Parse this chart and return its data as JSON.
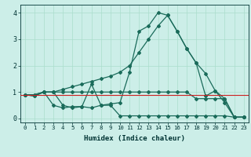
{
  "xlabel": "Humidex (Indice chaleur)",
  "xlim": [
    0,
    23
  ],
  "ylim": [
    -0.15,
    4.3
  ],
  "xticks": [
    0,
    1,
    2,
    3,
    4,
    5,
    6,
    7,
    8,
    9,
    10,
    11,
    12,
    13,
    14,
    15,
    16,
    17,
    18,
    19,
    20,
    21,
    22,
    23
  ],
  "yticks": [
    0,
    1,
    2,
    3,
    4
  ],
  "bg_color": "#cceee8",
  "line_color": "#1a6b5a",
  "grid_color": "#aaddcc",
  "red_line_y": 0.9,
  "line_diagonal": [
    0.9,
    0.9,
    1.0,
    1.0,
    1.1,
    1.2,
    1.3,
    1.4,
    1.5,
    1.6,
    1.75,
    2.0,
    2.5,
    3.0,
    3.5,
    3.9,
    3.3,
    2.65,
    2.1,
    1.7,
    1.05,
    0.75,
    0.05,
    0.05
  ],
  "line_jagged": [
    0.9,
    0.85,
    1.0,
    0.5,
    0.4,
    0.45,
    0.45,
    1.3,
    0.5,
    0.55,
    0.6,
    1.75,
    3.3,
    3.5,
    4.0,
    3.9,
    3.3,
    2.65,
    2.1,
    0.85,
    1.05,
    0.6,
    0.05,
    0.05
  ],
  "line_flat_upper": [
    0.9,
    0.9,
    1.0,
    1.0,
    1.0,
    1.0,
    1.0,
    1.0,
    1.0,
    1.0,
    1.0,
    1.0,
    1.0,
    1.0,
    1.0,
    1.0,
    1.0,
    1.0,
    0.75,
    0.75,
    0.75,
    0.75,
    0.05,
    0.05
  ],
  "line_flat_lower": [
    0.9,
    0.85,
    1.0,
    1.0,
    0.5,
    0.4,
    0.45,
    0.4,
    0.5,
    0.5,
    0.1,
    0.1,
    0.1,
    0.1,
    0.1,
    0.1,
    0.1,
    0.1,
    0.1,
    0.1,
    0.1,
    0.1,
    0.05,
    0.05
  ]
}
